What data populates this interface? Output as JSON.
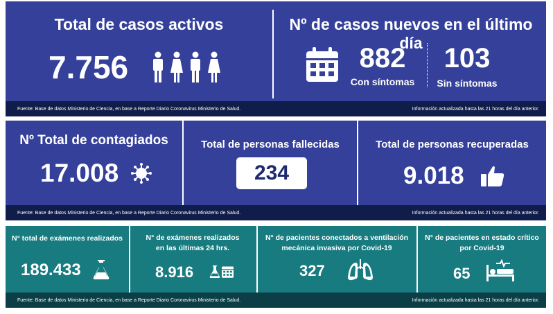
{
  "row1": {
    "active_title": "Total de casos activos",
    "active_value": "7.756",
    "new_title": "Nº de casos nuevos en el último día",
    "symptoms_value": "882",
    "symptoms_label": "Con síntomas",
    "nosymptoms_value": "103",
    "nosymptoms_label": "Sin síntomas",
    "footer_source": "Fuente: Base de datos Ministerio de Ciencia, en base a Reporte Diario Coronavirus Ministerio de Salud.",
    "footer_update": "Información actualizada hasta las 21 horas  del día anterior."
  },
  "row2": {
    "infected_title": "Nº Total de contagiados",
    "infected_value": "17.008",
    "deaths_title": "Total de personas fallecidas",
    "deaths_value": "234",
    "recovered_title": "Total de personas recuperadas",
    "recovered_value": "9.018",
    "footer_source": "Fuente: Base de datos Ministerio de Ciencia, en base a Reporte Diario Coronavirus Ministerio de Salud.",
    "footer_update": "Información actualizada hasta las 21 horas  del día anterior."
  },
  "row3": {
    "exams_title": "N° total de exámenes realizados",
    "exams_value": "189.433",
    "exams24_title_1": "N° de exámenes realizados",
    "exams24_title_2": "en las últimas 24 hrs.",
    "exams24_value": "8.916",
    "ventilation_title_1": "N° de pacientes conectados a ventilación",
    "ventilation_title_2": "mecánica invasiva por Covid-19",
    "ventilation_value": "327",
    "critical_title_1": "N° de pacientes en estado crítico",
    "critical_title_2": "por Covid-19",
    "critical_value": "65",
    "footer_source": "Fuente: Base de datos Ministerio de Ciencia, en base a Reporte Diario Coronavirus Ministerio de Salud.",
    "footer_update": "Información actualizada hasta las 21 horas  del día anterior."
  },
  "colors": {
    "blue": "#34409a",
    "teal": "#177b80",
    "footer_dark": "#101d4a"
  },
  "icons": [
    "person-icon",
    "calendar-icon",
    "virus-icon",
    "thumbs-up-icon",
    "flask-icon",
    "lungs-icon",
    "hospital-bed-icon"
  ]
}
